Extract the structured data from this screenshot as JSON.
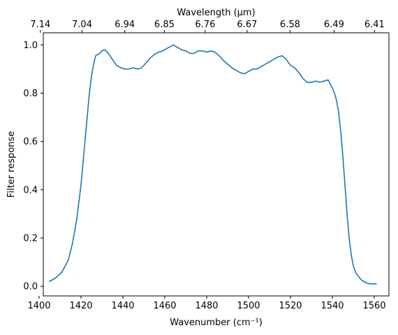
{
  "chart_data": {
    "type": "line",
    "xlabel": "Wavenumber (cm⁻¹)",
    "ylabel": "Filter response",
    "top_xlabel": "Wavelength (μm)",
    "xlim": [
      1402,
      1567
    ],
    "ylim": [
      -0.04,
      1.05
    ],
    "x_ticks": [
      1400,
      1420,
      1440,
      1460,
      1480,
      1500,
      1520,
      1540,
      1560
    ],
    "x_tick_labels": [
      "1400",
      "1420",
      "1440",
      "1460",
      "1480",
      "1500",
      "1520",
      "1540",
      "1560"
    ],
    "y_ticks": [
      0.0,
      0.2,
      0.4,
      0.6,
      0.8,
      1.0
    ],
    "y_tick_labels": [
      "0.0",
      "0.2",
      "0.4",
      "0.6",
      "0.8",
      "1.0"
    ],
    "top_ticks": [
      1400.6,
      1420.5,
      1440.9,
      1459.8,
      1479.3,
      1499.3,
      1519.8,
      1540.8,
      1560.1
    ],
    "top_tick_labels": [
      "7.14",
      "7.04",
      "6.94",
      "6.85",
      "6.76",
      "6.67",
      "6.58",
      "6.49",
      "6.41"
    ],
    "grid": false,
    "color": "#1f77b4",
    "series": [
      {
        "x": [
          1405,
          1408,
          1411,
          1414,
          1416,
          1418,
          1420,
          1422,
          1424,
          1425,
          1426,
          1427,
          1428,
          1429,
          1430,
          1431,
          1432,
          1433,
          1435,
          1437,
          1439,
          1441,
          1443,
          1445,
          1447,
          1449,
          1451,
          1453,
          1455,
          1457,
          1459,
          1461,
          1463,
          1464,
          1466,
          1468,
          1470,
          1472,
          1474,
          1476,
          1478,
          1480,
          1482,
          1484,
          1486,
          1488,
          1490,
          1492,
          1494,
          1496,
          1498,
          1500,
          1502,
          1504,
          1506,
          1508,
          1510,
          1512,
          1514,
          1516,
          1518,
          1520,
          1522,
          1524,
          1526,
          1528,
          1530,
          1532,
          1534,
          1536,
          1538,
          1540,
          1541,
          1542,
          1543,
          1544,
          1545,
          1546,
          1547,
          1548,
          1549,
          1550,
          1551,
          1552,
          1553,
          1554,
          1555,
          1556,
          1557,
          1558,
          1559,
          1561
        ],
        "y": [
          0.02,
          0.035,
          0.06,
          0.11,
          0.18,
          0.28,
          0.42,
          0.61,
          0.8,
          0.87,
          0.92,
          0.955,
          0.96,
          0.965,
          0.975,
          0.98,
          0.975,
          0.965,
          0.94,
          0.915,
          0.905,
          0.9,
          0.9,
          0.905,
          0.9,
          0.905,
          0.925,
          0.945,
          0.96,
          0.97,
          0.975,
          0.985,
          0.995,
          1.0,
          0.99,
          0.98,
          0.975,
          0.965,
          0.965,
          0.975,
          0.975,
          0.97,
          0.975,
          0.97,
          0.955,
          0.935,
          0.92,
          0.905,
          0.895,
          0.885,
          0.88,
          0.89,
          0.9,
          0.9,
          0.91,
          0.92,
          0.93,
          0.94,
          0.95,
          0.955,
          0.94,
          0.915,
          0.905,
          0.885,
          0.86,
          0.845,
          0.845,
          0.85,
          0.845,
          0.85,
          0.855,
          0.82,
          0.8,
          0.77,
          0.72,
          0.64,
          0.54,
          0.42,
          0.3,
          0.2,
          0.13,
          0.085,
          0.06,
          0.045,
          0.035,
          0.025,
          0.02,
          0.015,
          0.012,
          0.01,
          0.01,
          0.01
        ]
      }
    ]
  }
}
